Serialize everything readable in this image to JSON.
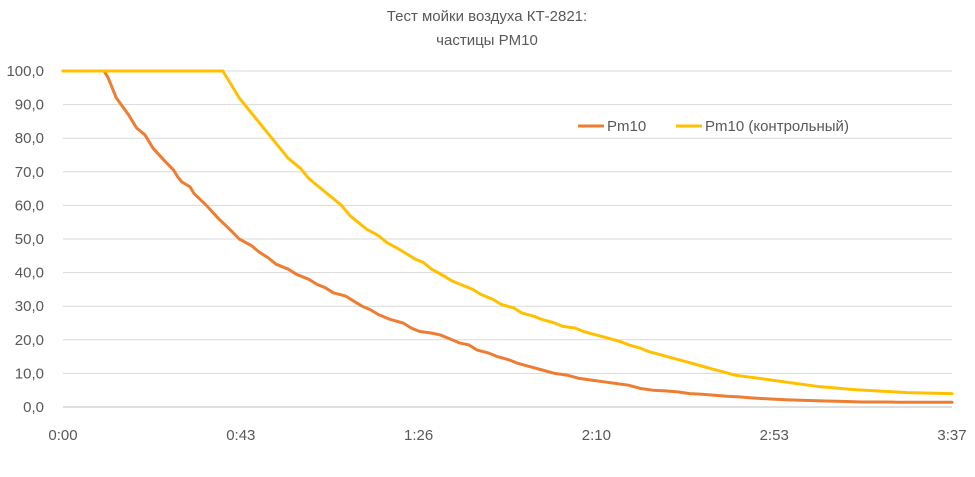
{
  "chart_data": {
    "type": "line",
    "title_lines": [
      "Тест мойки воздуха КТ-2821:",
      "частицы PM10"
    ],
    "x_tick_labels": [
      "0:00",
      "0:43",
      "1:26",
      "2:10",
      "2:53",
      "3:37"
    ],
    "x_unit": "minutes",
    "xlim": [
      0,
      217
    ],
    "y_tick_labels": [
      "0,0",
      "10,0",
      "20,0",
      "30,0",
      "40,0",
      "50,0",
      "60,0",
      "70,0",
      "80,0",
      "90,0",
      "100,0"
    ],
    "ylim": [
      0,
      100
    ],
    "grid": true,
    "legend_position": "top-right",
    "series": [
      {
        "name": "Pm10",
        "color": "#ED7D31",
        "points": [
          [
            0,
            100
          ],
          [
            10,
            100
          ],
          [
            11,
            98
          ],
          [
            13,
            92
          ],
          [
            16,
            87
          ],
          [
            18,
            83
          ],
          [
            20,
            81
          ],
          [
            22,
            77
          ],
          [
            25,
            73
          ],
          [
            27,
            70.5
          ],
          [
            28,
            68.5
          ],
          [
            29,
            67
          ],
          [
            31,
            65.5
          ],
          [
            32,
            63.5
          ],
          [
            35,
            60
          ],
          [
            38,
            56
          ],
          [
            41,
            52.5
          ],
          [
            43,
            50
          ],
          [
            46,
            48
          ],
          [
            48,
            46
          ],
          [
            50,
            44.5
          ],
          [
            52,
            42.5
          ],
          [
            55,
            41
          ],
          [
            57,
            39.5
          ],
          [
            60,
            38
          ],
          [
            62,
            36.5
          ],
          [
            64,
            35.5
          ],
          [
            66,
            34
          ],
          [
            69,
            33
          ],
          [
            71,
            31.5
          ],
          [
            73,
            30
          ],
          [
            75,
            29
          ],
          [
            77,
            27.5
          ],
          [
            80,
            26
          ],
          [
            83,
            25
          ],
          [
            85,
            23.5
          ],
          [
            87,
            22.5
          ],
          [
            90,
            22
          ],
          [
            92,
            21.5
          ],
          [
            94,
            20.5
          ],
          [
            97,
            19
          ],
          [
            99,
            18.5
          ],
          [
            101,
            17
          ],
          [
            104,
            16
          ],
          [
            106,
            15
          ],
          [
            109,
            14
          ],
          [
            111,
            13
          ],
          [
            114,
            12
          ],
          [
            117,
            11
          ],
          [
            120,
            10
          ],
          [
            123,
            9.5
          ],
          [
            126,
            8.5
          ],
          [
            129,
            8
          ],
          [
            132,
            7.5
          ],
          [
            135,
            7
          ],
          [
            138,
            6.5
          ],
          [
            141,
            5.5
          ],
          [
            144,
            5
          ],
          [
            147,
            4.8
          ],
          [
            150,
            4.5
          ],
          [
            153,
            4
          ],
          [
            156,
            3.8
          ],
          [
            159,
            3.5
          ],
          [
            162,
            3.2
          ],
          [
            165,
            3
          ],
          [
            168,
            2.7
          ],
          [
            171,
            2.5
          ],
          [
            174,
            2.3
          ],
          [
            177,
            2.1
          ],
          [
            180,
            2
          ],
          [
            183,
            1.9
          ],
          [
            186,
            1.8
          ],
          [
            189,
            1.7
          ],
          [
            192,
            1.6
          ],
          [
            195,
            1.5
          ],
          [
            198,
            1.5
          ],
          [
            201,
            1.5
          ],
          [
            204,
            1.4
          ],
          [
            207,
            1.4
          ],
          [
            210,
            1.4
          ],
          [
            213,
            1.4
          ],
          [
            217,
            1.4
          ]
        ]
      },
      {
        "name": "Pm10 (контрольный)",
        "color": "#FFC000",
        "points": [
          [
            0,
            100
          ],
          [
            39,
            100
          ],
          [
            41,
            96
          ],
          [
            43,
            92
          ],
          [
            45,
            89
          ],
          [
            47,
            86
          ],
          [
            49,
            83
          ],
          [
            51,
            80
          ],
          [
            53,
            77
          ],
          [
            55,
            74
          ],
          [
            58,
            71
          ],
          [
            60,
            68
          ],
          [
            63,
            65
          ],
          [
            65,
            63
          ],
          [
            68,
            60
          ],
          [
            70,
            57
          ],
          [
            72,
            55
          ],
          [
            74,
            53
          ],
          [
            77,
            51
          ],
          [
            79,
            49
          ],
          [
            82,
            47
          ],
          [
            84,
            45.5
          ],
          [
            86,
            44
          ],
          [
            88,
            43
          ],
          [
            90,
            41
          ],
          [
            93,
            39
          ],
          [
            95,
            37.5
          ],
          [
            97,
            36.5
          ],
          [
            100,
            35
          ],
          [
            102,
            33.5
          ],
          [
            105,
            32
          ],
          [
            107,
            30.5
          ],
          [
            110,
            29.5
          ],
          [
            112,
            28
          ],
          [
            115,
            27
          ],
          [
            117,
            26
          ],
          [
            120,
            25
          ],
          [
            122,
            24
          ],
          [
            125,
            23.5
          ],
          [
            127,
            22.5
          ],
          [
            130,
            21.5
          ],
          [
            133,
            20.5
          ],
          [
            136,
            19.5
          ],
          [
            138,
            18.5
          ],
          [
            141,
            17.5
          ],
          [
            143,
            16.5
          ],
          [
            146,
            15.5
          ],
          [
            149,
            14.5
          ],
          [
            152,
            13.5
          ],
          [
            155,
            12.5
          ],
          [
            158,
            11.5
          ],
          [
            161,
            10.5
          ],
          [
            164,
            9.5
          ],
          [
            167,
            9
          ],
          [
            170,
            8.5
          ],
          [
            173,
            8
          ],
          [
            176,
            7.5
          ],
          [
            179,
            7
          ],
          [
            182,
            6.5
          ],
          [
            185,
            6
          ],
          [
            188,
            5.7
          ],
          [
            191,
            5.4
          ],
          [
            194,
            5.1
          ],
          [
            197,
            4.9
          ],
          [
            200,
            4.7
          ],
          [
            203,
            4.5
          ],
          [
            206,
            4.3
          ],
          [
            209,
            4.2
          ],
          [
            213,
            4.1
          ],
          [
            217,
            4.0
          ]
        ]
      }
    ]
  }
}
